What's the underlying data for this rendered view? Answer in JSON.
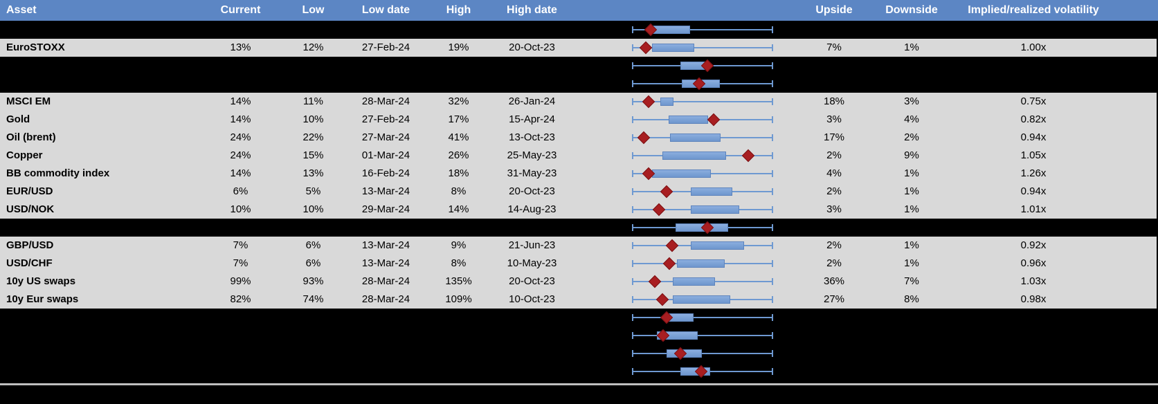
{
  "header": {
    "columns": [
      "Asset",
      "Current",
      "Low",
      "Low date",
      "High",
      "High date",
      "Upside",
      "Downside",
      "Implied/realized volatility"
    ]
  },
  "colors": {
    "header_bg": "#5c86c4",
    "header_text": "#ffffff",
    "row_gray": "#d9d9d9",
    "row_black": "#000000",
    "whisker_blue": "#6e99d1",
    "box_blue": "#7ba2d6",
    "diamond_red": "#a81e21",
    "separator_gray": "#bfbfbf"
  },
  "chart_data": {
    "type": "boxplot",
    "note_layout": "one horizontal min-max whisker per row, normalized 0-1; box = interquartile band; diamond marker = current level",
    "whisker_range": [
      0,
      1
    ]
  },
  "rows": [
    {
      "bg": "black",
      "asset": "",
      "current": "",
      "low": "",
      "low_date": "",
      "high": "",
      "high_date": "",
      "upside": "",
      "downside": "",
      "implied_realized": "",
      "boxplot": {
        "whisker_lo": 0,
        "whisker_hi": 1,
        "box_lo": 0.141,
        "box_hi": 0.41,
        "marker": 0.132
      }
    },
    {
      "bg": "gray",
      "asset": "EuroSTOXX",
      "current": "13%",
      "low": "12%",
      "low_date": "27-Feb-24",
      "high": "19%",
      "high_date": "20-Oct-23",
      "upside": "7%",
      "downside": "1%",
      "implied_realized": "1.00x",
      "boxplot": {
        "whisker_lo": 0,
        "whisker_hi": 1,
        "box_lo": 0.141,
        "box_hi": 0.443,
        "marker": 0.097
      }
    },
    {
      "bg": "black",
      "asset": "",
      "current": "",
      "low": "",
      "low_date": "",
      "high": "",
      "high_date": "",
      "upside": "",
      "downside": "",
      "implied_realized": "",
      "boxplot": {
        "whisker_lo": 0,
        "whisker_hi": 1,
        "box_lo": 0.343,
        "box_hi": 0.549,
        "marker": 0.533
      }
    },
    {
      "bg": "black",
      "asset": "",
      "current": "",
      "low": "",
      "low_date": "",
      "high": "",
      "high_date": "",
      "upside": "",
      "downside": "",
      "implied_realized": "",
      "boxplot": {
        "whisker_lo": 0,
        "whisker_hi": 1,
        "box_lo": 0.353,
        "box_hi": 0.623,
        "marker": 0.475
      }
    },
    {
      "bg": "gray",
      "asset": "MSCI EM",
      "current": "14%",
      "low": "11%",
      "low_date": "28-Mar-24",
      "high": "32%",
      "high_date": "26-Jan-24",
      "upside": "18%",
      "downside": "3%",
      "implied_realized": "0.75x",
      "boxplot": {
        "whisker_lo": 0,
        "whisker_hi": 1,
        "box_lo": 0.203,
        "box_hi": 0.293,
        "marker": 0.116
      }
    },
    {
      "bg": "gray",
      "asset": "Gold",
      "current": "14%",
      "low": "10%",
      "low_date": "27-Feb-24",
      "high": "17%",
      "high_date": "15-Apr-24",
      "upside": "3%",
      "downside": "4%",
      "implied_realized": "0.82x",
      "boxplot": {
        "whisker_lo": 0,
        "whisker_hi": 1,
        "box_lo": 0.26,
        "box_hi": 0.538,
        "marker": 0.578
      }
    },
    {
      "bg": "gray",
      "asset": "Oil (brent)",
      "current": "24%",
      "low": "22%",
      "low_date": "27-Mar-24",
      "high": "41%",
      "high_date": "13-Oct-23",
      "upside": "17%",
      "downside": "2%",
      "implied_realized": "0.94x",
      "boxplot": {
        "whisker_lo": 0,
        "whisker_hi": 1,
        "box_lo": 0.268,
        "box_hi": 0.626,
        "marker": 0.083
      }
    },
    {
      "bg": "gray",
      "asset": "Copper",
      "current": "24%",
      "low": "15%",
      "low_date": "01-Mar-24",
      "high": "26%",
      "high_date": "25-May-23",
      "upside": "2%",
      "downside": "9%",
      "implied_realized": "1.05x",
      "boxplot": {
        "whisker_lo": 0,
        "whisker_hi": 1,
        "box_lo": 0.214,
        "box_hi": 0.668,
        "marker": 0.824
      }
    },
    {
      "bg": "gray",
      "asset": "BB commodity index",
      "current": "14%",
      "low": "13%",
      "low_date": "16-Feb-24",
      "high": "18%",
      "high_date": "31-May-23",
      "upside": "4%",
      "downside": "1%",
      "implied_realized": "1.26x",
      "boxplot": {
        "whisker_lo": 0,
        "whisker_hi": 1,
        "box_lo": 0.141,
        "box_hi": 0.557,
        "marker": 0.116
      }
    },
    {
      "bg": "gray",
      "asset": "EUR/USD",
      "current": "6%",
      "low": "5%",
      "low_date": "13-Mar-24",
      "high": "8%",
      "high_date": "20-Oct-23",
      "upside": "2%",
      "downside": "1%",
      "implied_realized": "0.94x",
      "boxplot": {
        "whisker_lo": 0,
        "whisker_hi": 1,
        "box_lo": 0.415,
        "box_hi": 0.712,
        "marker": 0.247
      }
    },
    {
      "bg": "gray",
      "asset": "USD/NOK",
      "current": "10%",
      "low": "10%",
      "low_date": "29-Mar-24",
      "high": "14%",
      "high_date": "14-Aug-23",
      "upside": "3%",
      "downside": "1%",
      "implied_realized": "1.01x",
      "boxplot": {
        "whisker_lo": 0,
        "whisker_hi": 1,
        "box_lo": 0.415,
        "box_hi": 0.761,
        "marker": 0.19
      }
    },
    {
      "bg": "black",
      "asset": "",
      "current": "",
      "low": "",
      "low_date": "",
      "high": "",
      "high_date": "",
      "upside": "",
      "downside": "",
      "implied_realized": "",
      "boxplot": {
        "whisker_lo": 0,
        "whisker_hi": 1,
        "box_lo": 0.309,
        "box_hi": 0.68,
        "marker": 0.533
      }
    },
    {
      "bg": "gray",
      "asset": "GBP/USD",
      "current": "7%",
      "low": "6%",
      "low_date": "13-Mar-24",
      "high": "9%",
      "high_date": "21-Jun-23",
      "upside": "2%",
      "downside": "1%",
      "implied_realized": "0.92x",
      "boxplot": {
        "whisker_lo": 0,
        "whisker_hi": 1,
        "box_lo": 0.415,
        "box_hi": 0.794,
        "marker": 0.284
      }
    },
    {
      "bg": "gray",
      "asset": "USD/CHF",
      "current": "7%",
      "low": "6%",
      "low_date": "13-Mar-24",
      "high": "8%",
      "high_date": "10-May-23",
      "upside": "2%",
      "downside": "1%",
      "implied_realized": "0.96x",
      "boxplot": {
        "whisker_lo": 0,
        "whisker_hi": 1,
        "box_lo": 0.317,
        "box_hi": 0.655,
        "marker": 0.264
      }
    },
    {
      "bg": "gray",
      "asset": "10y US swaps",
      "current": "99%",
      "low": "93%",
      "low_date": "28-Mar-24",
      "high": "135%",
      "high_date": "20-Oct-23",
      "upside": "36%",
      "downside": "7%",
      "implied_realized": "1.03x",
      "boxplot": {
        "whisker_lo": 0,
        "whisker_hi": 1,
        "box_lo": 0.288,
        "box_hi": 0.587,
        "marker": 0.162
      }
    },
    {
      "bg": "gray",
      "asset": "10y Eur swaps",
      "current": "82%",
      "low": "74%",
      "low_date": "28-Mar-24",
      "high": "109%",
      "high_date": "10-Oct-23",
      "upside": "27%",
      "downside": "8%",
      "implied_realized": "0.98x",
      "boxplot": {
        "whisker_lo": 0,
        "whisker_hi": 1,
        "box_lo": 0.288,
        "box_hi": 0.696,
        "marker": 0.216
      }
    },
    {
      "bg": "black",
      "asset": "",
      "current": "",
      "low": "",
      "low_date": "",
      "high": "",
      "high_date": "",
      "upside": "",
      "downside": "",
      "implied_realized": "",
      "boxplot": {
        "whisker_lo": 0,
        "whisker_hi": 1,
        "box_lo": 0.247,
        "box_hi": 0.435,
        "marker": 0.244
      }
    },
    {
      "bg": "black",
      "asset": "",
      "current": "",
      "low": "",
      "low_date": "",
      "high": "",
      "high_date": "",
      "upside": "",
      "downside": "",
      "implied_realized": "",
      "boxplot": {
        "whisker_lo": 0,
        "whisker_hi": 1,
        "box_lo": 0.178,
        "box_hi": 0.464,
        "marker": 0.222
      }
    },
    {
      "bg": "black",
      "asset": "",
      "current": "",
      "low": "",
      "low_date": "",
      "high": "",
      "high_date": "",
      "upside": "",
      "downside": "",
      "implied_realized": "",
      "boxplot": {
        "whisker_lo": 0,
        "whisker_hi": 1,
        "box_lo": 0.244,
        "box_hi": 0.497,
        "marker": 0.345
      }
    },
    {
      "bg": "black",
      "asset": "",
      "current": "",
      "low": "",
      "low_date": "",
      "high": "",
      "high_date": "",
      "upside": "",
      "downside": "",
      "implied_realized": "",
      "boxplot": {
        "whisker_lo": 0,
        "whisker_hi": 1,
        "box_lo": 0.342,
        "box_hi": 0.554,
        "marker": 0.489
      }
    }
  ]
}
